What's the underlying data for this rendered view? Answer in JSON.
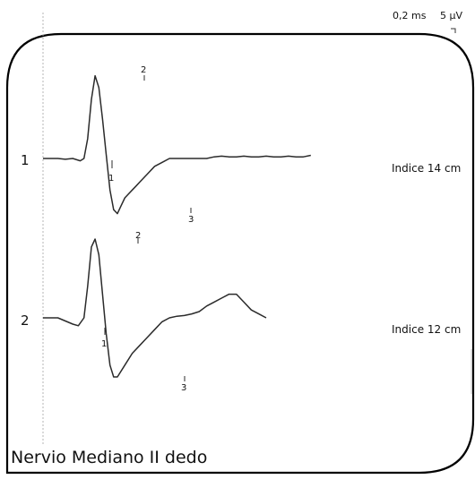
{
  "chart_data": {
    "type": "line",
    "title": "Nervio Mediano II dedo",
    "scale": {
      "time": "0,2 ms",
      "amplitude": "5 µV"
    },
    "traces": [
      {
        "row_label": "1",
        "name": "Indice 14 cm",
        "markers": [
          "1",
          "2",
          "3"
        ],
        "x": [
          0,
          0.2,
          0.4,
          0.6,
          0.8,
          1.0,
          1.1,
          1.2,
          1.3,
          1.4,
          1.5,
          1.6,
          1.7,
          1.8,
          1.9,
          2.0,
          2.1,
          2.2,
          2.3,
          2.4,
          2.5,
          2.6,
          2.8,
          3.0,
          3.2,
          3.4,
          3.6,
          3.8,
          4.0,
          4.2,
          4.4,
          4.6,
          4.8,
          5.0,
          5.2,
          5.4,
          5.6,
          5.8,
          6.0,
          6.2,
          6.4,
          6.6,
          6.8,
          7.0,
          7.2
        ],
        "y": [
          0,
          0,
          0,
          -0.1,
          0,
          -0.3,
          0,
          2.5,
          7.5,
          10.5,
          9.0,
          5.0,
          0.5,
          -4.0,
          -6.5,
          -7.0,
          -6.0,
          -5.0,
          -4.5,
          -4.0,
          -3.5,
          -3.0,
          -2.0,
          -1.0,
          -0.5,
          0,
          0,
          0,
          0,
          0,
          0,
          0.2,
          0.3,
          0.2,
          0.2,
          0.3,
          0.2,
          0.2,
          0.3,
          0.2,
          0.2,
          0.3,
          0.2,
          0.2,
          0.4
        ]
      },
      {
        "row_label": "2",
        "name": "Indice 12 cm",
        "markers": [
          "1",
          "2",
          "3"
        ],
        "x": [
          0,
          0.2,
          0.4,
          0.6,
          0.8,
          0.95,
          1.1,
          1.2,
          1.3,
          1.4,
          1.5,
          1.6,
          1.7,
          1.8,
          1.9,
          2.0,
          2.2,
          2.4,
          2.6,
          2.8,
          3.0,
          3.2,
          3.4,
          3.6,
          3.8,
          4.0,
          4.2,
          4.4,
          4.6,
          4.8,
          5.0,
          5.2,
          5.4,
          5.6,
          5.8,
          6.0
        ],
        "y": [
          0,
          0,
          0,
          -0.4,
          -0.8,
          -1.0,
          0,
          4.0,
          9.0,
          10.0,
          8.0,
          3.0,
          -2.0,
          -6.0,
          -7.5,
          -7.5,
          -6.0,
          -4.5,
          -3.5,
          -2.5,
          -1.5,
          -0.5,
          0,
          0.2,
          0.3,
          0.5,
          0.8,
          1.5,
          2.0,
          2.5,
          3.0,
          3.0,
          2.0,
          1.0,
          0.5,
          0
        ]
      }
    ]
  }
}
